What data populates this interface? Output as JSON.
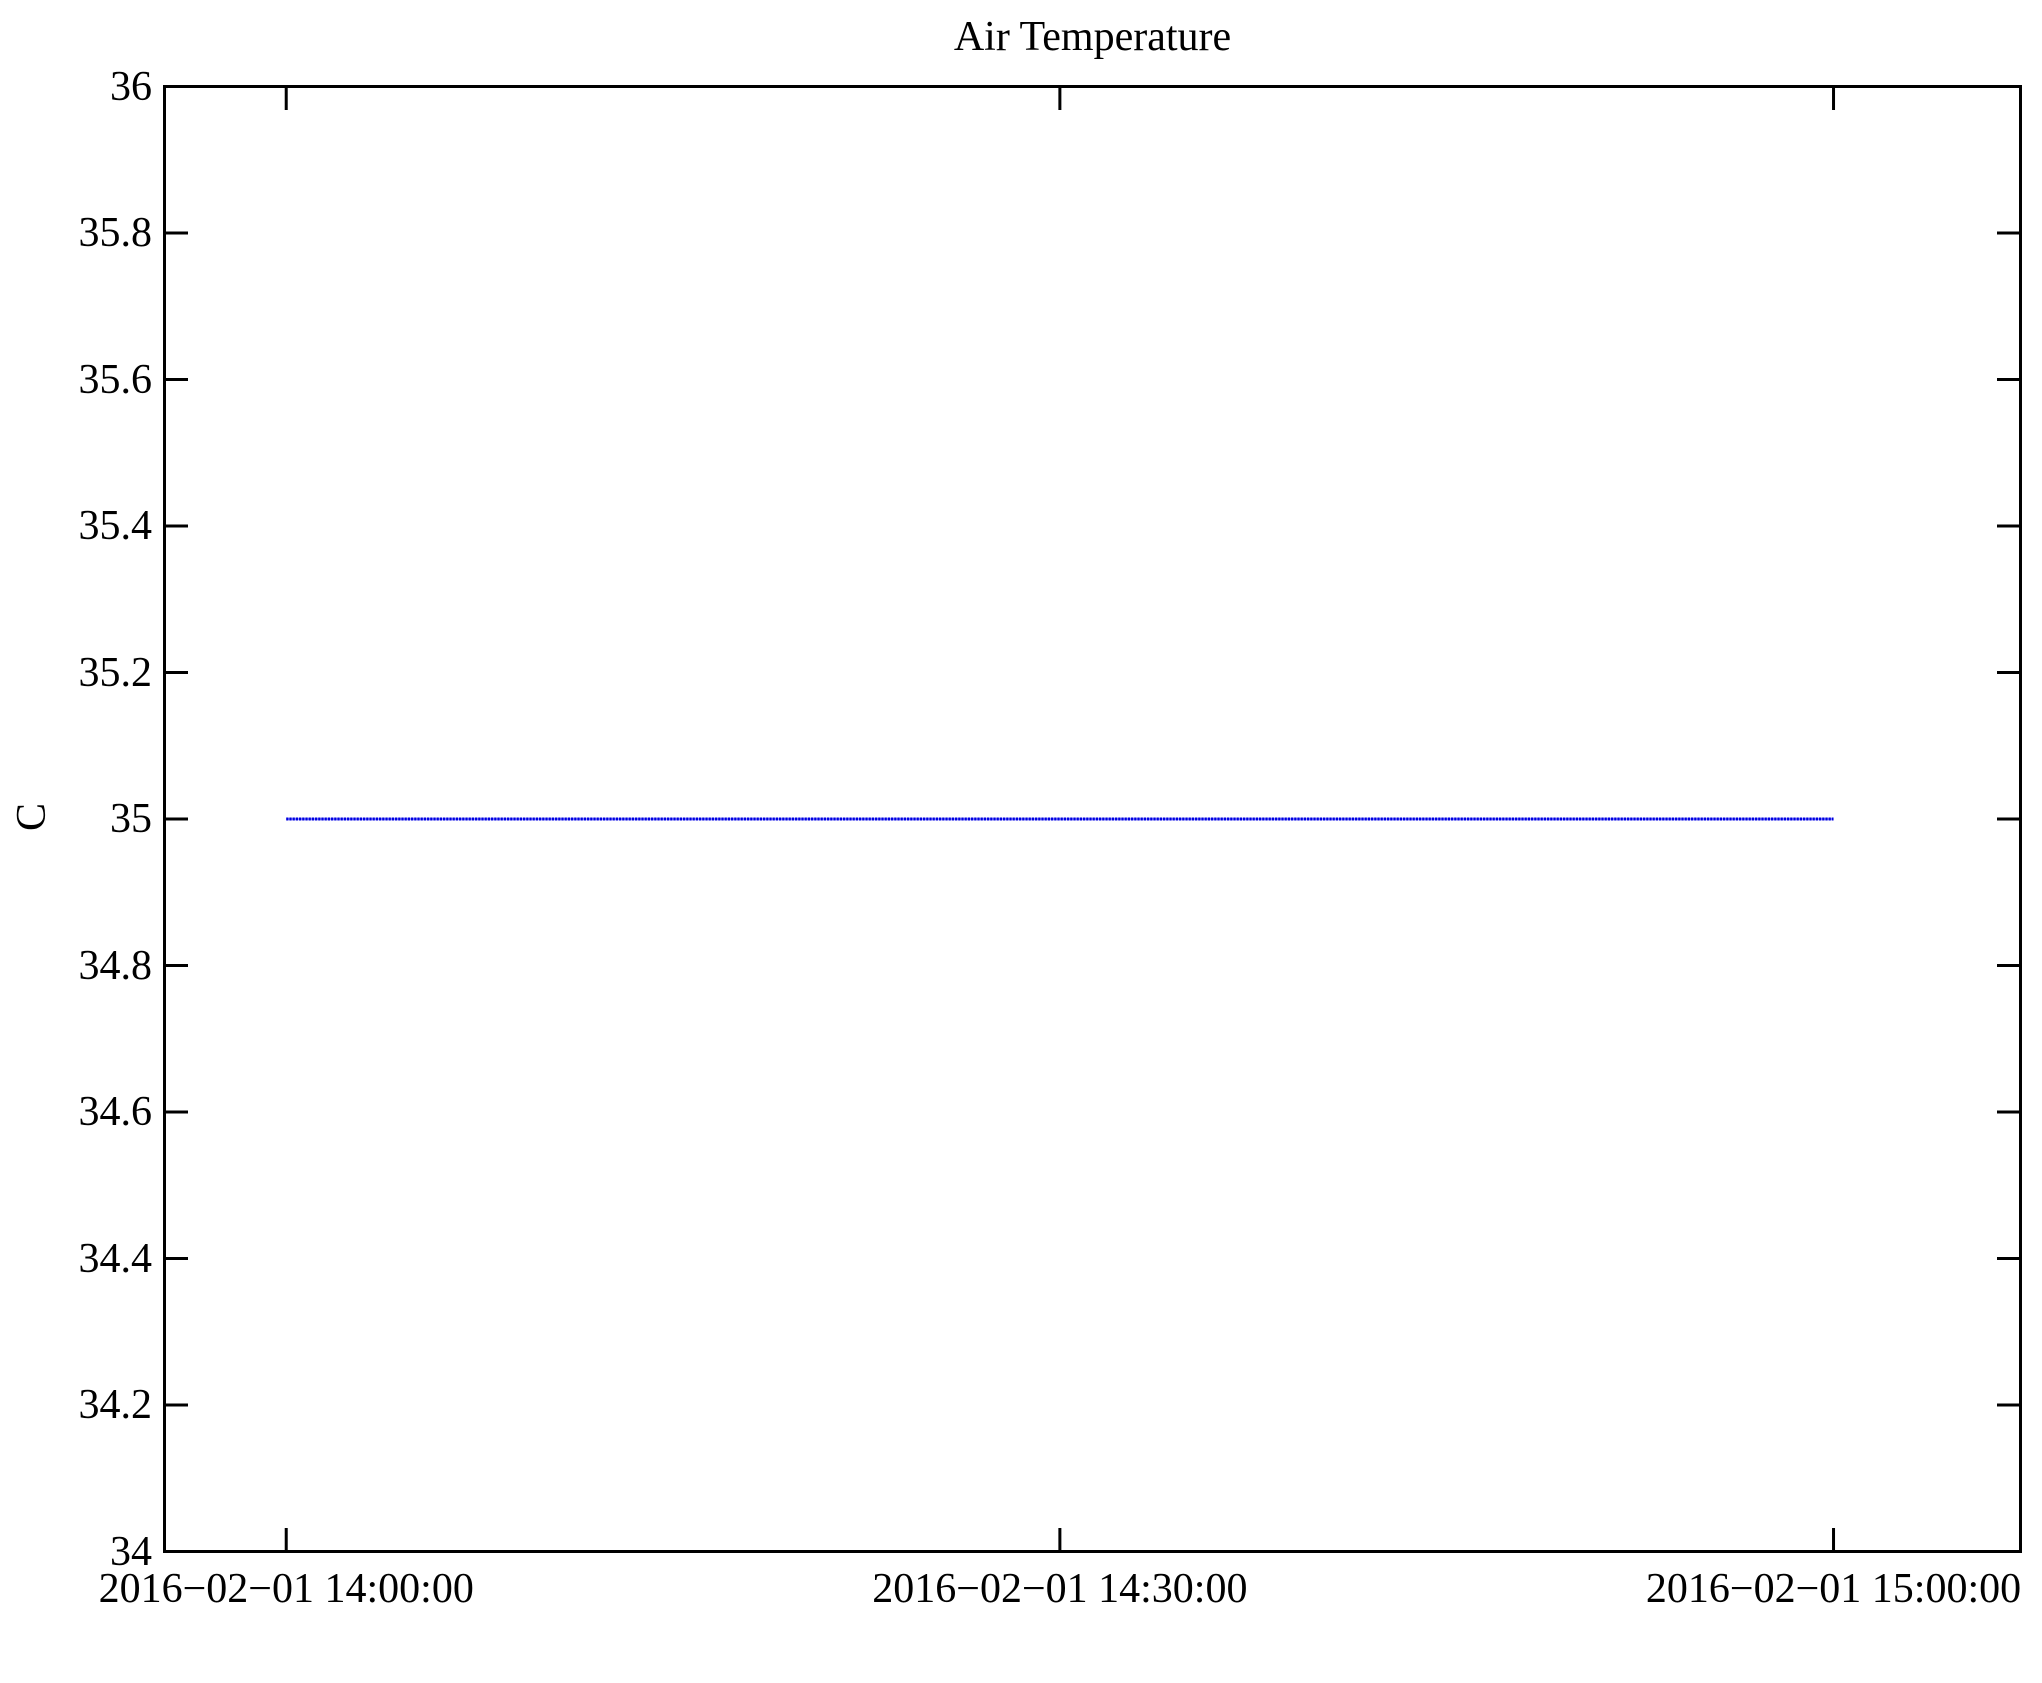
{
  "figure": {
    "title": "Air Temperature",
    "background_color": "#ffffff",
    "axis_color": "#000000",
    "line_color": "#0000e0",
    "line_gap_color": "#9999ff"
  },
  "chart_data": {
    "type": "line",
    "title": "Air Temperature",
    "xlabel": "",
    "ylabel": "C",
    "grid": false,
    "legend": null,
    "series": [
      {
        "name": "air temperature",
        "color": "#0000e0",
        "constant_value_c": 35,
        "x_minutes_from_1400": [
          0,
          5,
          10,
          15,
          20,
          25,
          30,
          35,
          40,
          45,
          50,
          55,
          60
        ],
        "y_c": [
          35,
          35,
          35,
          35,
          35,
          35,
          35,
          35,
          35,
          35,
          35,
          35,
          35
        ]
      }
    ],
    "x_axis": {
      "tick_labels": [
        "2016−02−01 14:00:00",
        "2016−02−01 14:30:00",
        "2016−02−01 15:00:00"
      ],
      "tick_minutes": [
        0,
        30,
        60
      ],
      "range_minutes": [
        -4.72,
        67.25
      ]
    },
    "y_axis": {
      "tick_labels": [
        "36",
        "35.8",
        "35.6",
        "35.4",
        "35.2",
        "35",
        "34.8",
        "34.6",
        "34.4",
        "34.2",
        "34"
      ],
      "tick_values": [
        36,
        35.8,
        35.6,
        35.4,
        35.2,
        35,
        34.8,
        34.6,
        34.4,
        34.2,
        34
      ],
      "range": [
        34,
        36
      ]
    }
  }
}
